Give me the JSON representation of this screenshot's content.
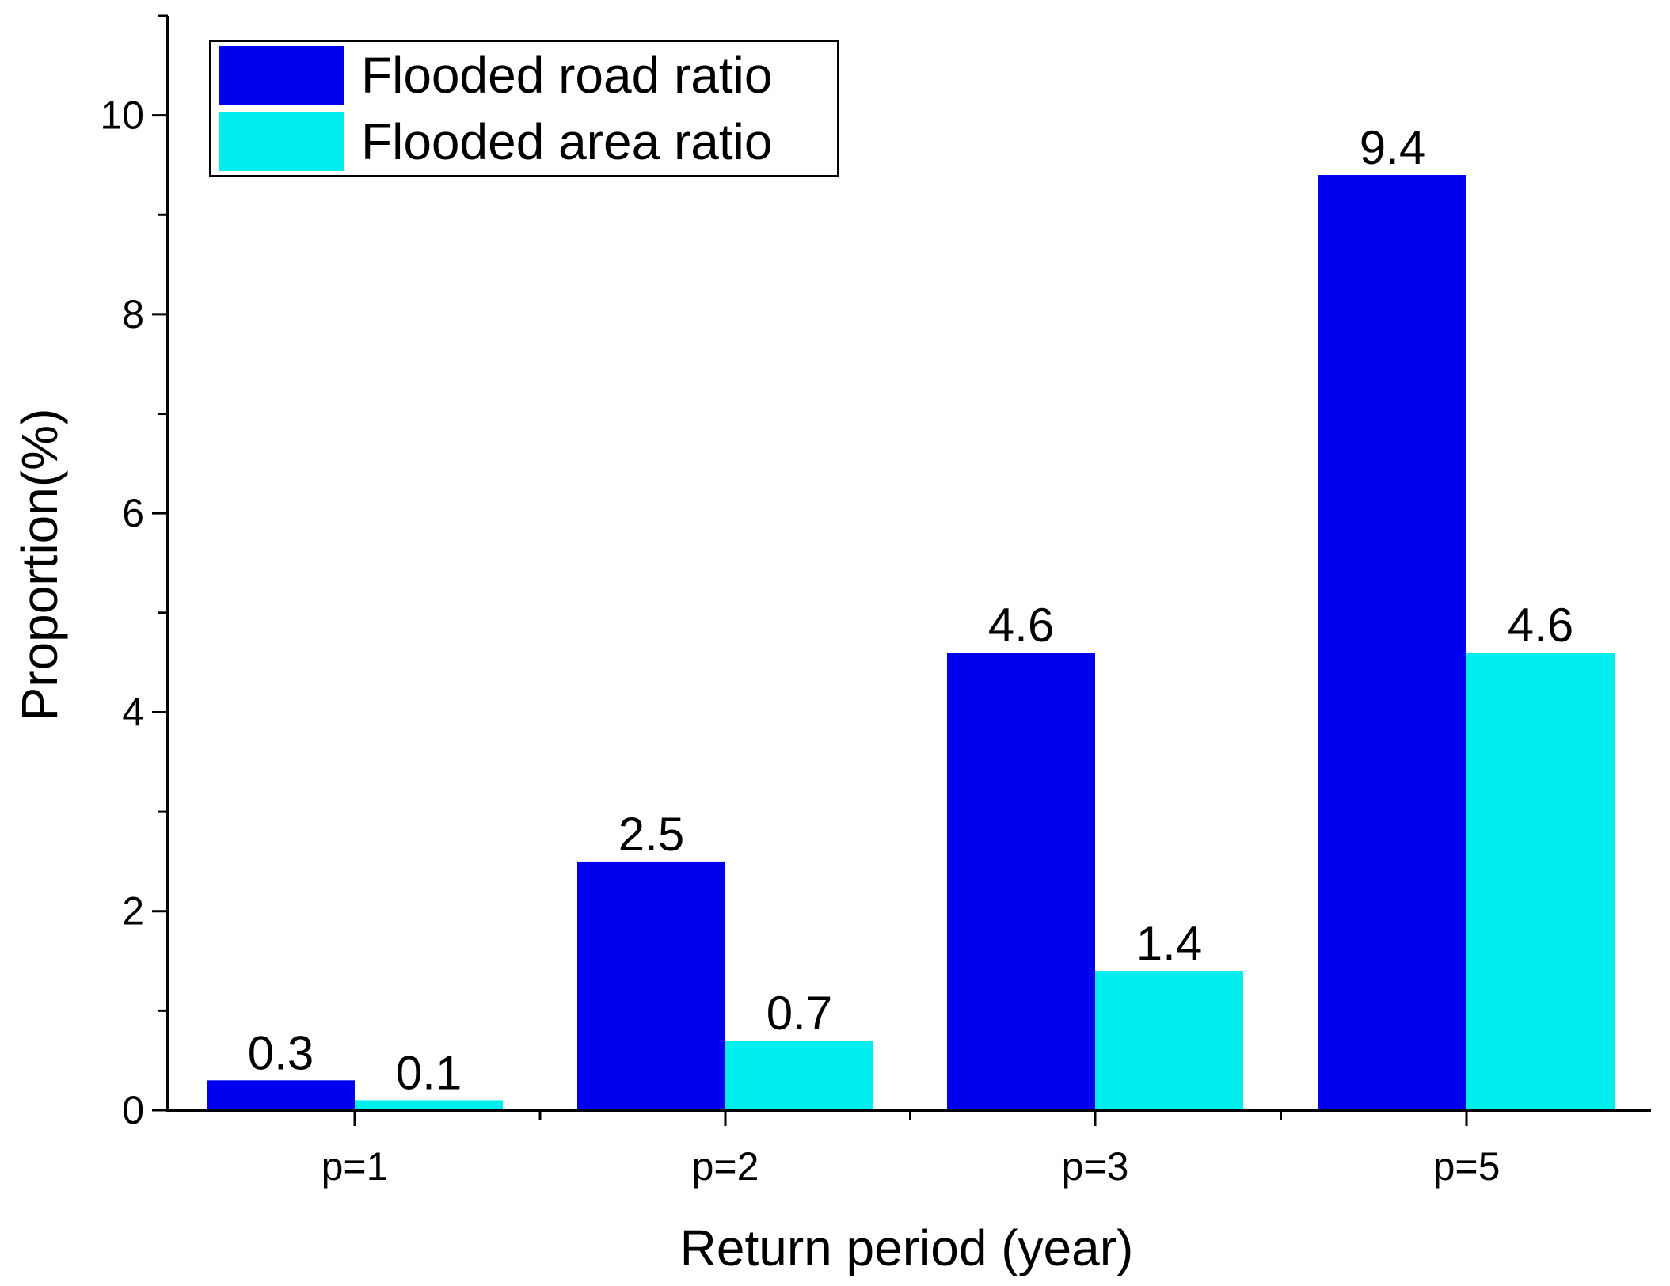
{
  "chart_data": {
    "type": "bar",
    "title": "",
    "xlabel": "Return period (year)",
    "ylabel": "Proportion(%)",
    "categories": [
      "p=1",
      "p=2",
      "p=3",
      "p=5"
    ],
    "series": [
      {
        "name": "Flooded road ratio",
        "color": "#0000ee",
        "values": [
          0.3,
          2.5,
          4.6,
          9.4
        ],
        "labels": [
          "0.3",
          "2.5",
          "4.6",
          "9.4"
        ]
      },
      {
        "name": "Flooded area ratio",
        "color": "#00eeee",
        "values": [
          0.1,
          0.7,
          1.4,
          4.6
        ],
        "labels": [
          "0.1",
          "0.7",
          "1.4",
          "4.6"
        ]
      }
    ],
    "ylim": [
      0,
      11
    ],
    "yticks": [
      0,
      2,
      4,
      6,
      8,
      10
    ],
    "ytick_labels": [
      "0",
      "2",
      "4",
      "6",
      "8",
      "10"
    ],
    "grid": false,
    "legend_position": "top-left"
  }
}
